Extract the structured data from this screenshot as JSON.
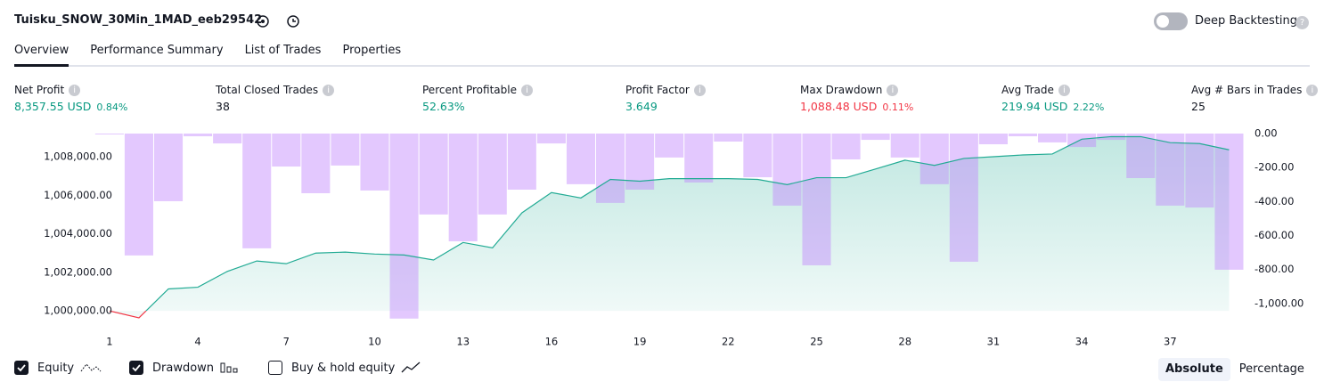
{
  "header": {
    "title": "Tuisku_SNOW_30Min_1MAD_eeb29542",
    "toggle": {
      "label": "Deep Backtesting",
      "on": false
    }
  },
  "tabs": [
    {
      "label": "Overview",
      "active": true
    },
    {
      "label": "Performance Summary",
      "active": false
    },
    {
      "label": "List of Trades",
      "active": false
    },
    {
      "label": "Properties",
      "active": false
    }
  ],
  "metrics": [
    {
      "label": "Net Profit",
      "value": "8,357.55 USD",
      "percent": "0.84%",
      "tone": "positive"
    },
    {
      "label": "Total Closed Trades",
      "value": "38",
      "tone": "neutral"
    },
    {
      "label": "Percent Profitable",
      "value": "52.63%",
      "tone": "positive"
    },
    {
      "label": "Profit Factor",
      "value": "3.649",
      "tone": "positive"
    },
    {
      "label": "Max Drawdown",
      "value": "1,088.48 USD",
      "percent": "0.11%",
      "tone": "negative"
    },
    {
      "label": "Avg Trade",
      "value": "219.94 USD",
      "percent": "2.22%",
      "tone": "positive"
    },
    {
      "label": "Avg # Bars in Trades",
      "value": "25",
      "tone": "neutral"
    }
  ],
  "chart_data": {
    "type": "combo",
    "x": [
      1,
      2,
      3,
      4,
      5,
      6,
      7,
      8,
      9,
      10,
      11,
      12,
      13,
      14,
      15,
      16,
      17,
      18,
      19,
      20,
      21,
      22,
      23,
      24,
      25,
      26,
      27,
      28,
      29,
      30,
      31,
      32,
      33,
      34,
      35,
      36,
      37,
      38,
      39
    ],
    "xlim": [
      0.55,
      39.5
    ],
    "xticks": [
      1,
      4,
      7,
      10,
      13,
      16,
      19,
      22,
      25,
      28,
      31,
      34,
      37
    ],
    "ylim": [
      999500,
      1009200
    ],
    "yticks": [
      {
        "value": 1000000,
        "label": "1,000,000.00"
      },
      {
        "value": 1002000,
        "label": "1,002,000.00"
      },
      {
        "value": 1004000,
        "label": "1,004,000.00"
      },
      {
        "value": 1006000,
        "label": "1,006,000.00"
      },
      {
        "value": 1008000,
        "label": "1,008,000.00"
      }
    ],
    "y2lim": [
      -1100,
      0
    ],
    "y2ticks": [
      {
        "value": 0,
        "label": "0.00"
      },
      {
        "value": -200,
        "label": "-200.00"
      },
      {
        "value": -400,
        "label": "-400.00"
      },
      {
        "value": -600,
        "label": "-600.00"
      },
      {
        "value": -800,
        "label": "-800.00"
      },
      {
        "value": -1000,
        "label": "-1,000.00"
      }
    ],
    "series": [
      {
        "name": "Equity",
        "type": "area",
        "visible": true,
        "color": "#22ab94",
        "negative_color": "#f23645",
        "values": [
          1000000,
          999640,
          1001140,
          1001230,
          1002050,
          1002590,
          1002450,
          1003000,
          1003050,
          1002950,
          1002900,
          1002640,
          1003550,
          1003270,
          1005090,
          1006140,
          1005860,
          1006820,
          1006730,
          1006860,
          1006860,
          1006860,
          1006820,
          1006550,
          1006910,
          1006910,
          1007360,
          1007820,
          1007550,
          1007910,
          1008000,
          1008090,
          1008140,
          1008910,
          1009040,
          1009040,
          1008730,
          1008680,
          1008357.55
        ]
      },
      {
        "name": "Drawdown",
        "type": "bar",
        "axis": "y2",
        "visible": true,
        "color": "#c084fc",
        "values": [
          -5,
          -717,
          -398,
          -16,
          -58,
          -675,
          -194,
          -351,
          -188,
          -335,
          -1088.48,
          -476,
          -634,
          -476,
          -330,
          -58,
          -298,
          -408,
          -330,
          -141,
          -288,
          -47,
          -257,
          -424,
          -775,
          -152,
          -37,
          -141,
          -298,
          -754,
          -63,
          -16,
          -52,
          -79,
          -37,
          -262,
          -424,
          -435,
          -801
        ]
      }
    ],
    "extra_legend": {
      "name": "Buy & hold equity",
      "checked": false
    }
  },
  "view_modes": [
    {
      "label": "Absolute",
      "active": true
    },
    {
      "label": "Percentage",
      "active": false
    }
  ]
}
